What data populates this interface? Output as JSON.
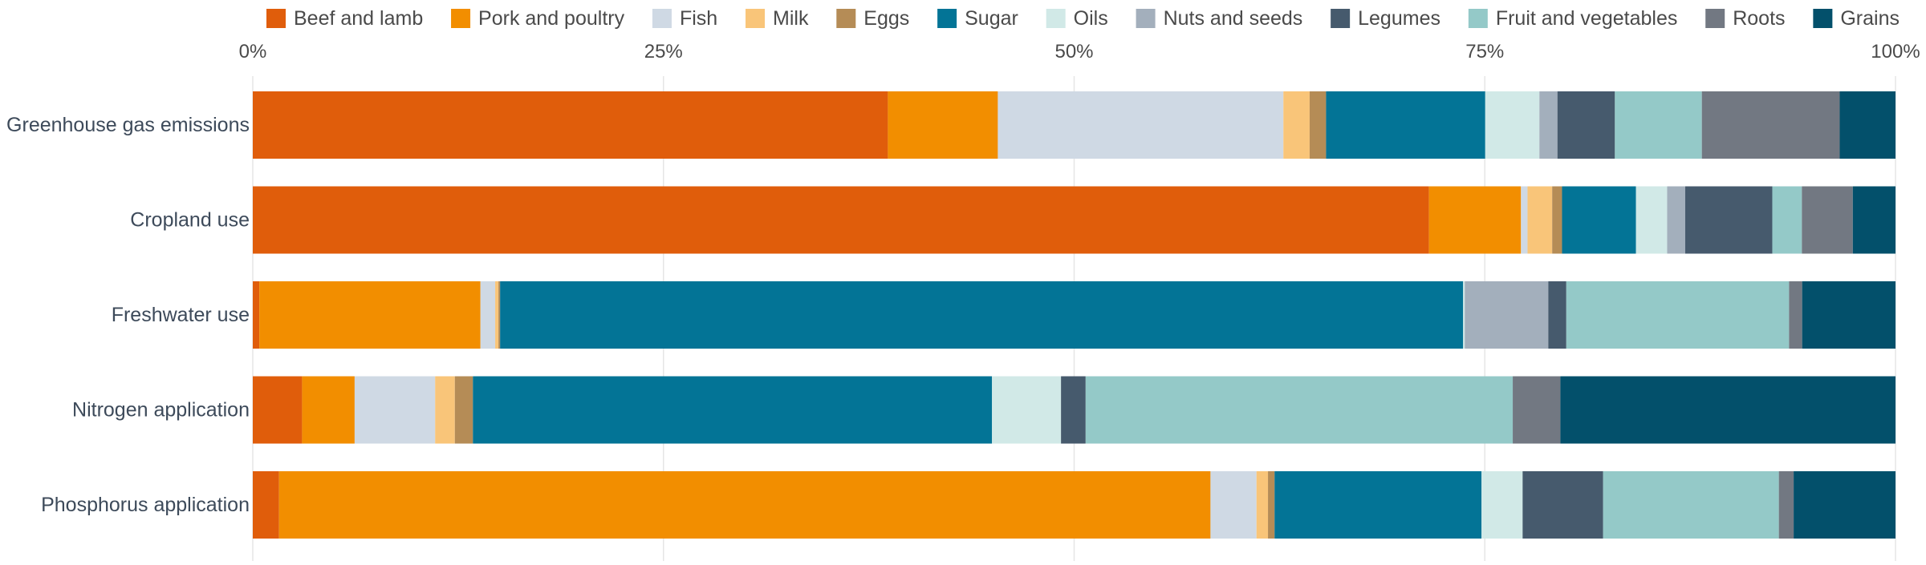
{
  "colors": {
    "Beef and lamb": "#e05d0b",
    "Pork and poultry": "#f28e00",
    "Fish": "#cfd9e4",
    "Milk": "#f9c579",
    "Eggs": "#b58c56",
    "Sugar": "#037496",
    "Oils": "#d1e9e7",
    "Nuts and seeds": "#a3afbc",
    "Legumes": "#465a6d",
    "Fruit and vegetables": "#94c9c8",
    "Roots": "#727882",
    "Grains": "#03506b"
  },
  "chart_data": {
    "type": "bar",
    "orientation": "horizontal",
    "stacked": true,
    "title": "",
    "xlabel": "",
    "ylabel": "",
    "xlim": [
      0,
      100
    ],
    "x_ticks": [
      0,
      25,
      50,
      75,
      100
    ],
    "x_tick_labels": [
      "0%",
      "25%",
      "50%",
      "75%",
      "100%"
    ],
    "grid": true,
    "legend_position": "top",
    "categories": [
      "Greenhouse gas emissions",
      "Cropland use",
      "Freshwater use",
      "Nitrogen application",
      "Phosphorus application"
    ],
    "series": [
      {
        "name": "Beef and lamb",
        "values": [
          38.7,
          71.6,
          0.4,
          3.0,
          1.6
        ]
      },
      {
        "name": "Pork and poultry",
        "values": [
          6.7,
          5.6,
          13.5,
          3.2,
          56.7
        ]
      },
      {
        "name": "Fish",
        "values": [
          17.4,
          0.4,
          0.9,
          4.9,
          2.8
        ]
      },
      {
        "name": "Milk",
        "values": [
          1.6,
          1.5,
          0.2,
          1.2,
          0.7
        ]
      },
      {
        "name": "Eggs",
        "values": [
          1.0,
          0.6,
          0.1,
          1.1,
          0.4
        ]
      },
      {
        "name": "Sugar",
        "values": [
          9.7,
          4.5,
          58.8,
          31.6,
          12.6
        ]
      },
      {
        "name": "Oils",
        "values": [
          3.3,
          1.9,
          0.1,
          4.2,
          2.5
        ]
      },
      {
        "name": "Nuts and seeds",
        "values": [
          1.1,
          1.1,
          5.1,
          0.0,
          0.0
        ]
      },
      {
        "name": "Legumes",
        "values": [
          3.5,
          5.3,
          1.1,
          1.5,
          4.9
        ]
      },
      {
        "name": "Fruit and vegetables",
        "values": [
          5.3,
          1.8,
          13.6,
          26.0,
          10.7
        ]
      },
      {
        "name": "Roots",
        "values": [
          8.4,
          3.1,
          0.8,
          2.9,
          0.9
        ]
      },
      {
        "name": "Grains",
        "values": [
          3.4,
          2.6,
          5.7,
          20.4,
          6.2
        ]
      }
    ]
  }
}
